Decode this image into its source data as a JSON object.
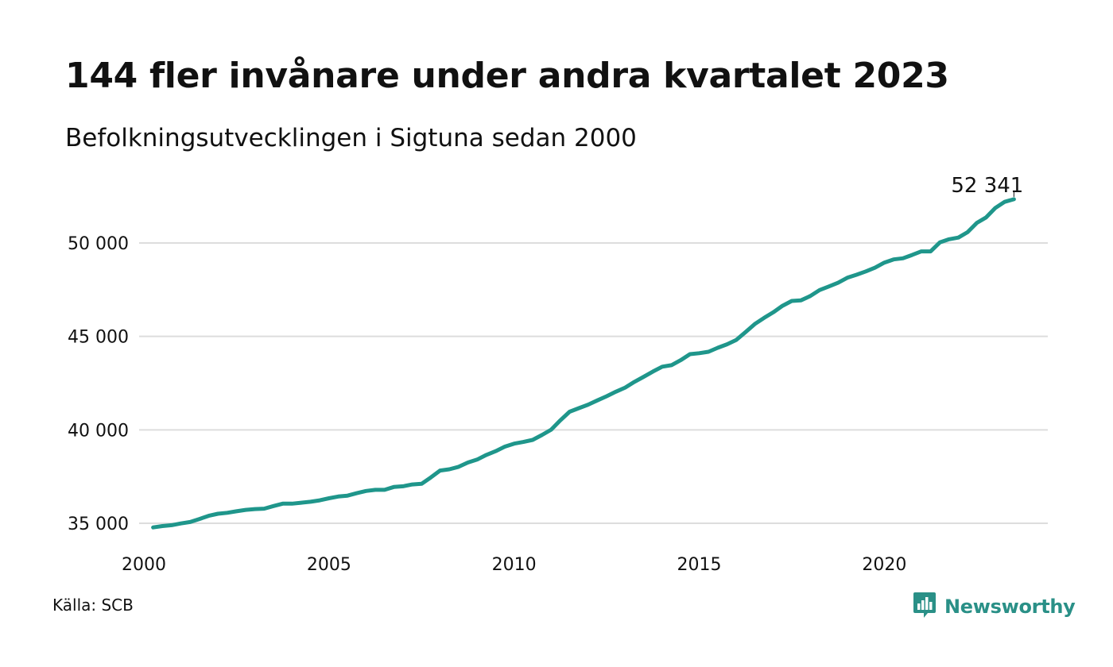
{
  "header": {
    "title": "144 fler invånare under andra kvartalet 2023",
    "subtitle": "Befolkningsutvecklingen i Sigtuna sedan 2000"
  },
  "footer": {
    "source": "Källa: SCB",
    "brand": "Newsworthy",
    "brand_color": "#2a9087",
    "brand_icon": "bar-chart-speech-bubble-icon"
  },
  "chart_data": {
    "type": "line",
    "title": "144 fler invånare under andra kvartalet 2023",
    "subtitle": "Befolkningsutvecklingen i Sigtuna sedan 2000",
    "xlabel": "",
    "ylabel": "",
    "xlim": [
      2000,
      2023.75
    ],
    "ylim": [
      34800,
      52800
    ],
    "x_ticks": [
      2000,
      2005,
      2010,
      2015,
      2020
    ],
    "x_tick_labels": [
      "2000",
      "2005",
      "2010",
      "2015",
      "2020"
    ],
    "y_ticks": [
      35000,
      40000,
      45000,
      50000
    ],
    "y_tick_labels": [
      "35 000",
      "40 000",
      "45 000",
      "50 000"
    ],
    "grid": "horizontal",
    "legend": "none",
    "line_color": "#1f968b",
    "end_label": "52 341",
    "series": [
      {
        "x": [
          2000.25,
          2000.5,
          2000.75,
          2001.0,
          2001.25,
          2001.5,
          2001.75,
          2002.0,
          2002.25,
          2002.5,
          2002.75,
          2003.0,
          2003.25,
          2003.5,
          2003.75,
          2004.0,
          2004.25,
          2004.5,
          2004.75,
          2005.0,
          2005.25,
          2005.5,
          2005.75,
          2006.0,
          2006.25,
          2006.5,
          2006.75,
          2007.0,
          2007.25,
          2007.5,
          2007.75,
          2008.0,
          2008.25,
          2008.5,
          2008.75,
          2009.0,
          2009.25,
          2009.5,
          2009.75,
          2010.0,
          2010.25,
          2010.5,
          2010.75,
          2011.0,
          2011.25,
          2011.5,
          2011.75,
          2012.0,
          2012.25,
          2012.5,
          2012.75,
          2013.0,
          2013.25,
          2013.5,
          2013.75,
          2014.0,
          2014.25,
          2014.5,
          2014.75,
          2015.0,
          2015.25,
          2015.5,
          2015.75,
          2016.0,
          2016.25,
          2016.5,
          2016.75,
          2017.0,
          2017.25,
          2017.5,
          2017.75,
          2018.0,
          2018.25,
          2018.5,
          2018.75,
          2019.0,
          2019.25,
          2019.5,
          2019.75,
          2020.0,
          2020.25,
          2020.5,
          2020.75,
          2021.0,
          2021.25,
          2021.5,
          2021.75,
          2022.0,
          2022.25,
          2022.5,
          2022.75,
          2023.0,
          2023.25,
          2023.5
        ],
        "values": [
          34780,
          34850,
          34900,
          34990,
          35070,
          35230,
          35400,
          35510,
          35560,
          35640,
          35720,
          35760,
          35780,
          35920,
          36050,
          36050,
          36100,
          36150,
          36230,
          36340,
          36430,
          36480,
          36610,
          36730,
          36790,
          36790,
          36940,
          36980,
          37080,
          37110,
          37450,
          37820,
          37890,
          38020,
          38250,
          38410,
          38660,
          38860,
          39100,
          39260,
          39350,
          39460,
          39720,
          40010,
          40510,
          40970,
          41160,
          41350,
          41580,
          41800,
          42040,
          42260,
          42570,
          42840,
          43120,
          43380,
          43460,
          43730,
          44050,
          44100,
          44180,
          44390,
          44580,
          44810,
          45230,
          45660,
          45990,
          46290,
          46640,
          46900,
          46930,
          47160,
          47480,
          47670,
          47870,
          48140,
          48300,
          48480,
          48680,
          48950,
          49120,
          49180,
          49360,
          49550,
          49550,
          50030,
          50200,
          50290,
          50580,
          51080,
          51370,
          51880,
          52200,
          52341
        ]
      }
    ]
  }
}
